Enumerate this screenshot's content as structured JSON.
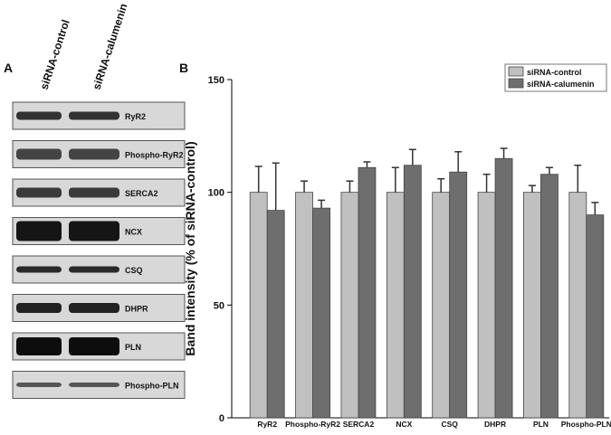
{
  "blot": {
    "panel_label": "A",
    "lanes": [
      "siRNA-control",
      "siRNA-calumenin"
    ],
    "bands": [
      "RyR2",
      "Phospho-RyR2",
      "SERCA2",
      "NCX",
      "CSQ",
      "DHPR",
      "PLN",
      "Phospho-PLN"
    ]
  },
  "chart_data": {
    "type": "bar",
    "panel_label": "B",
    "y_label": "Band intensity (% of siRNA-control)",
    "categories": [
      "RyR2",
      "Phospho-RyR2",
      "SERCA2",
      "NCX",
      "CSQ",
      "DHPR",
      "PLN",
      "Phospho-PLN"
    ],
    "series": [
      {
        "name": "siRNA-control",
        "color": "#c0c0c0",
        "values": [
          100,
          100,
          100,
          100,
          100,
          100,
          100,
          100
        ],
        "errors": [
          11.5,
          5,
          5,
          11,
          6,
          8,
          3,
          12
        ]
      },
      {
        "name": "siRNA-calumenin",
        "color": "#6e6e6e",
        "values": [
          92,
          93,
          111,
          112,
          109,
          115,
          108,
          90
        ],
        "errors": [
          21,
          3.5,
          2.5,
          7,
          9,
          4.5,
          3,
          5.5
        ]
      }
    ],
    "ylim": [
      0,
      150
    ],
    "yticks": [
      0,
      50,
      100,
      150
    ],
    "legend": "top-right"
  }
}
